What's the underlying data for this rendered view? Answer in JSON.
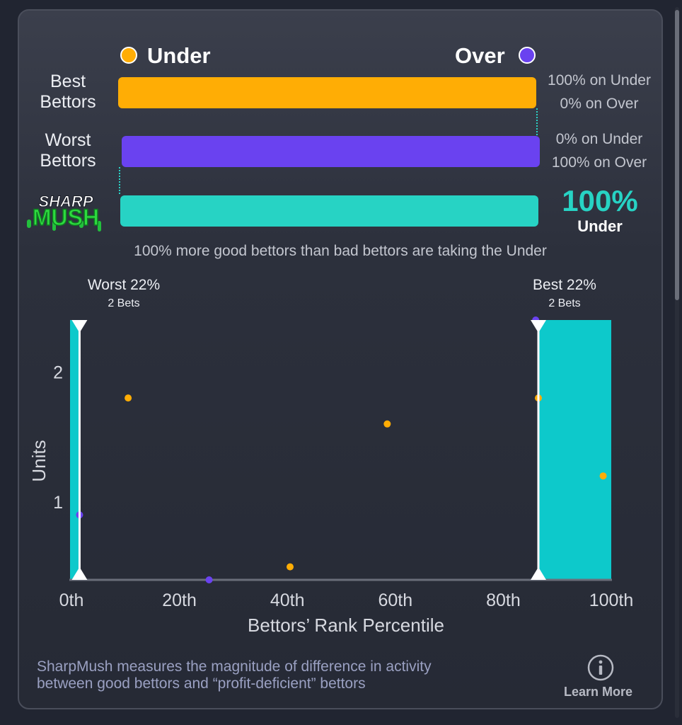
{
  "legend": {
    "under_label": "Under",
    "over_label": "Over"
  },
  "rows": {
    "best": {
      "label_line1": "Best",
      "label_line2": "Bettors",
      "under_text": "100% on Under",
      "over_text": "0% on Over"
    },
    "worst": {
      "label_line1": "Worst",
      "label_line2": "Bettors",
      "under_text": "0% on Under",
      "over_text": "100% on Over"
    },
    "sharpmush": {
      "logo_line1": "SHARP",
      "logo_line2": "MUSH",
      "percent": "100%",
      "side": "Under"
    }
  },
  "statement": "100% more good bettors than bad bettors are taking the Under",
  "footer": {
    "text_line1": "SharpMush measures the magnitude of difference in activity",
    "text_line2": "between good bettors and “profit-deficient” bettors",
    "learn_more": "Learn More"
  },
  "colors": {
    "under": "#ffad05",
    "over": "#6a42f0",
    "sharpmush": "#27d3c4",
    "shade": "#0dc9cb"
  },
  "chart_data": {
    "type": "scatter",
    "xlabel": "Bettors’ Rank Percentile",
    "ylabel": "Units",
    "x_ticks": [
      "0th",
      "20th",
      "40th",
      "60th",
      "80th",
      "100th"
    ],
    "y_ticks": [
      "1",
      "2"
    ],
    "xlim": [
      0,
      100
    ],
    "ylim": [
      0.4,
      2.4
    ],
    "worst": {
      "label": "Worst 22%",
      "sub": "2 Bets",
      "percentile": 1.5
    },
    "best": {
      "label": "Best 22%",
      "sub": "2 Bets",
      "percentile": 86.5
    },
    "series": [
      {
        "name": "Under",
        "color": "#ffad05",
        "points": [
          {
            "x": 10.5,
            "y": 1.8
          },
          {
            "x": 40.5,
            "y": 0.5
          },
          {
            "x": 58.5,
            "y": 1.6
          },
          {
            "x": 86.5,
            "y": 1.8
          },
          {
            "x": 98.5,
            "y": 1.2
          }
        ]
      },
      {
        "name": "Over",
        "color": "#6a42f0",
        "points": [
          {
            "x": 1.5,
            "y": 0.9
          },
          {
            "x": 25.5,
            "y": 0.4
          },
          {
            "x": 86.0,
            "y": 2.4
          }
        ]
      }
    ]
  }
}
